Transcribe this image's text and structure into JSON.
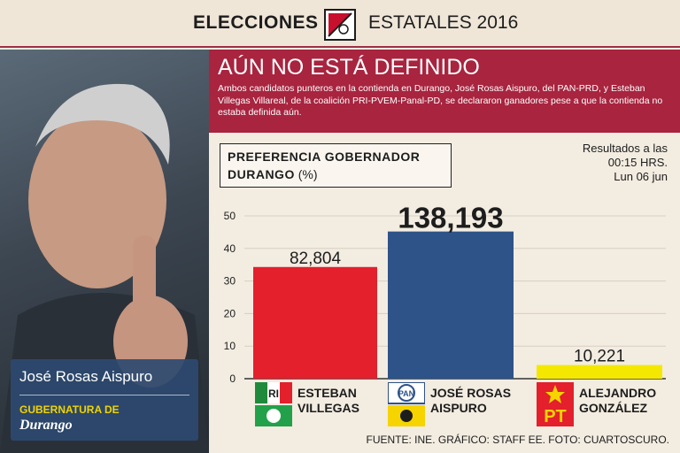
{
  "header": {
    "left": "ELECCIONES",
    "right": "ESTATALES 2016"
  },
  "photo_caption": {
    "name": "José Rosas Aispuro",
    "role": "GUBERNATURA DE",
    "place": "Durango"
  },
  "headline": {
    "title": "AÚN NO ESTÁ DEFINIDO",
    "description": "Ambos candidatos punteros en la contienda en Durango, José Rosas Aispuro, del PAN-PRD, y Esteban Villegas Villareal, de la coalición PRI-PVEM-Panal-PD, se declararon ganadores pese a que la contienda no estaba definida aún."
  },
  "results": {
    "line1": "Resultados a las",
    "line2": "00:15 HRS.",
    "line3": "Lun 06 jun"
  },
  "candidates": [
    {
      "line1": "ESTEBAN",
      "line2": "VILLEGAS"
    },
    {
      "line1": "JOSÉ ROSAS",
      "line2": "AISPURO"
    },
    {
      "line1": "ALEJANDRO",
      "line2": "GONZÁLEZ"
    }
  ],
  "chart_data": {
    "type": "bar",
    "title": "PREFERENCIA GOBERNADOR DURANGO",
    "title_unit": "(%)",
    "categories": [
      "ESTEBAN VILLEGAS",
      "JOSÉ ROSAS AISPURO",
      "ALEJANDRO GONZÁLEZ"
    ],
    "values": [
      34.3,
      45.2,
      4.2
    ],
    "data_labels": [
      "82,804",
      "138,193",
      "10,221"
    ],
    "colors": [
      "#e3202c",
      "#2e5389",
      "#f5e800"
    ],
    "ylim": [
      0,
      50
    ],
    "yticks": [
      0,
      10,
      20,
      30,
      40,
      50
    ],
    "grid": true
  },
  "footer": "FUENTE: INE. GRÁFICO: STAFF EE. FOTO: CUARTOSCURO."
}
